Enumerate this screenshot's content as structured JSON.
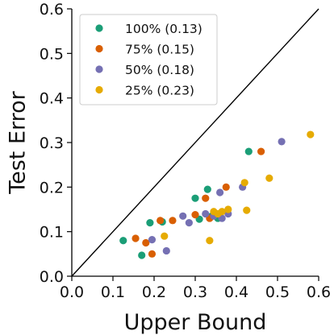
{
  "chart_data": {
    "type": "scatter",
    "xlabel": "Upper Bound",
    "ylabel": "Test Error",
    "xlim": [
      0.0,
      0.6
    ],
    "ylim": [
      0.0,
      0.6
    ],
    "xticks": [
      "0.0",
      "0.1",
      "0.2",
      "0.3",
      "0.4",
      "0.5",
      "0.6"
    ],
    "yticks": [
      "0.0",
      "0.1",
      "0.2",
      "0.3",
      "0.4",
      "0.5",
      "0.6"
    ],
    "grid": false,
    "legend_position": "top-left",
    "reference_line": {
      "from": [
        0.0,
        0.0
      ],
      "to": [
        0.6,
        0.6
      ],
      "color": "#000000"
    },
    "series": [
      {
        "name": "100% (0.13)",
        "color": "#1b9e77",
        "points": [
          [
            0.125,
            0.08
          ],
          [
            0.17,
            0.047
          ],
          [
            0.19,
            0.12
          ],
          [
            0.22,
            0.122
          ],
          [
            0.3,
            0.175
          ],
          [
            0.31,
            0.128
          ],
          [
            0.33,
            0.195
          ],
          [
            0.34,
            0.135
          ],
          [
            0.355,
            0.13
          ],
          [
            0.43,
            0.28
          ]
        ]
      },
      {
        "name": "75% (0.15)",
        "color": "#d95f02",
        "points": [
          [
            0.155,
            0.085
          ],
          [
            0.18,
            0.075
          ],
          [
            0.195,
            0.05
          ],
          [
            0.215,
            0.125
          ],
          [
            0.245,
            0.125
          ],
          [
            0.3,
            0.138
          ],
          [
            0.325,
            0.175
          ],
          [
            0.335,
            0.13
          ],
          [
            0.375,
            0.2
          ],
          [
            0.46,
            0.28
          ]
        ]
      },
      {
        "name": "50% (0.18)",
        "color": "#7570b3",
        "points": [
          [
            0.195,
            0.082
          ],
          [
            0.23,
            0.057
          ],
          [
            0.27,
            0.135
          ],
          [
            0.285,
            0.12
          ],
          [
            0.325,
            0.14
          ],
          [
            0.345,
            0.135
          ],
          [
            0.36,
            0.188
          ],
          [
            0.365,
            0.13
          ],
          [
            0.38,
            0.14
          ],
          [
            0.415,
            0.2
          ],
          [
            0.51,
            0.302
          ]
        ]
      },
      {
        "name": "25% (0.23)",
        "color": "#e6ab02",
        "points": [
          [
            0.225,
            0.09
          ],
          [
            0.335,
            0.08
          ],
          [
            0.345,
            0.145
          ],
          [
            0.355,
            0.14
          ],
          [
            0.365,
            0.145
          ],
          [
            0.38,
            0.15
          ],
          [
            0.42,
            0.21
          ],
          [
            0.425,
            0.148
          ],
          [
            0.48,
            0.22
          ],
          [
            0.58,
            0.318
          ]
        ]
      }
    ]
  }
}
